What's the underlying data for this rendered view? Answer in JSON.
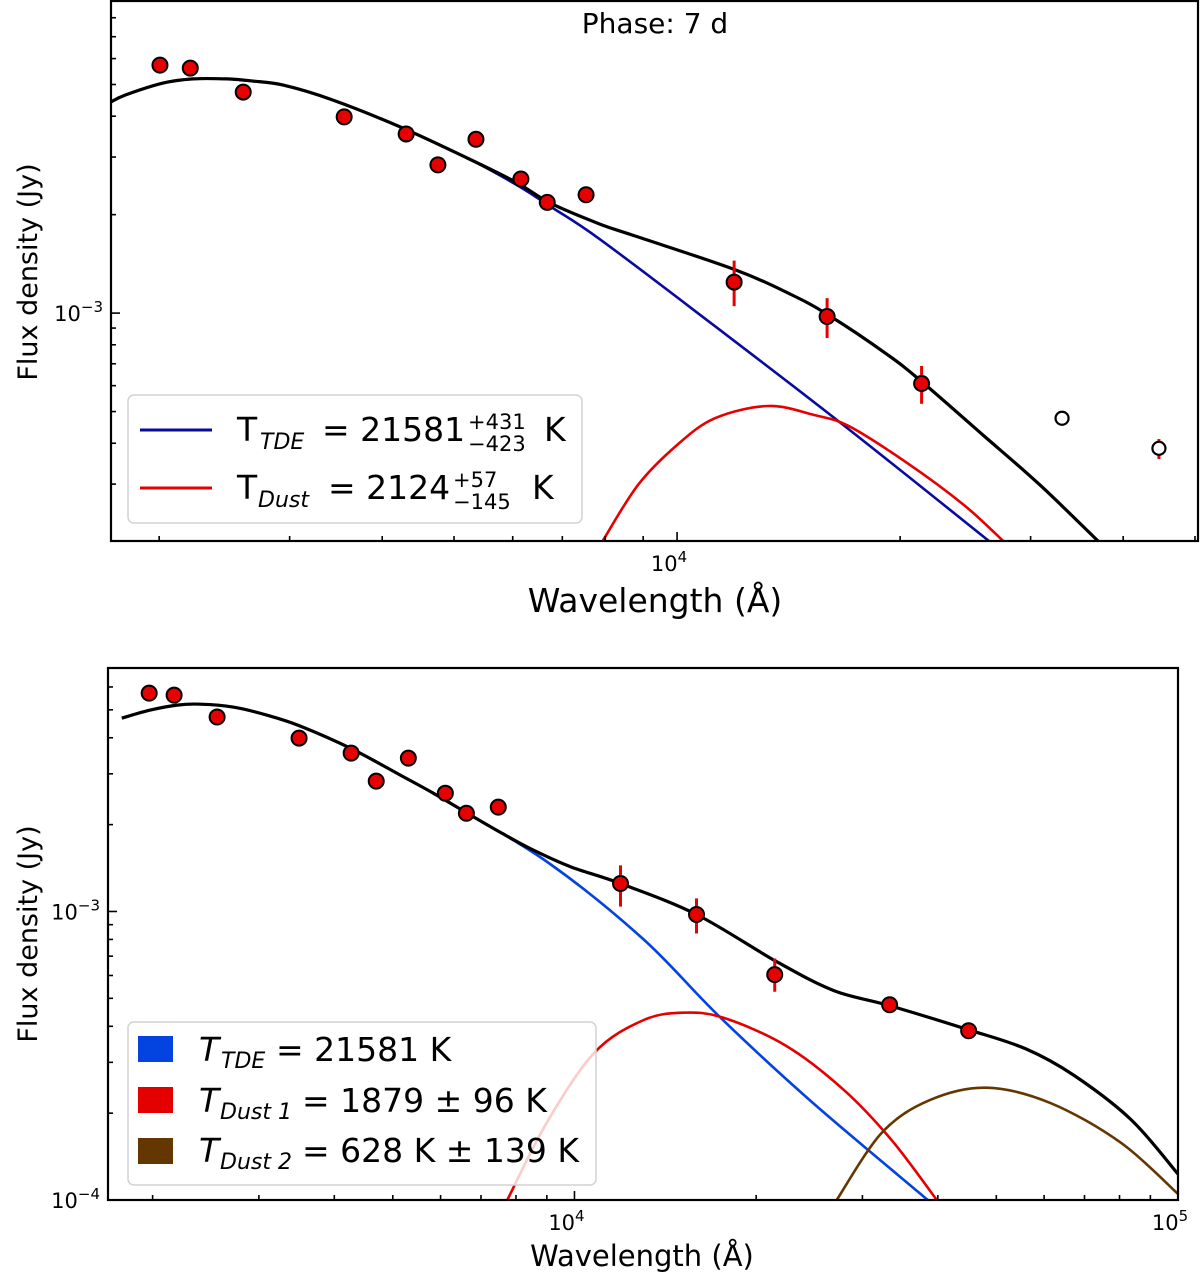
{
  "chart_data": [
    {
      "type": "scatter+line",
      "title": "Phase: 7 d",
      "xlabel": "Wavelength (Å)",
      "ylabel": "Flux density (Jy)",
      "xscale": "log",
      "yscale": "log",
      "xlim": [
        1722,
        50470
      ],
      "ylim": [
        0.000201,
        0.009
      ],
      "grid": false,
      "xticklabels": [
        {
          "value": 10000,
          "base": "10",
          "exp": "4"
        }
      ],
      "yticklabels": [
        {
          "value": 0.001,
          "base": "10",
          "exp": "−3"
        }
      ],
      "legend": {
        "position": "lower-left",
        "entries": [
          {
            "symbol": "T",
            "subscript": "TDE",
            "equals": "= 21581",
            "sup": "+431",
            "sub": "−423",
            "unit": "K",
            "color": "#0a0a9e"
          },
          {
            "symbol": "T",
            "subscript": "Dust",
            "equals": "= 2124",
            "sup": "+57",
            "sub": "−145",
            "unit": "K",
            "color": "#e60000"
          }
        ]
      },
      "points": [
        {
          "x": 2005,
          "y": 0.00573,
          "filled": true
        },
        {
          "x": 2203,
          "y": 0.00561,
          "filled": true
        },
        {
          "x": 2597,
          "y": 0.00474,
          "filled": true
        },
        {
          "x": 3554,
          "y": 0.00398,
          "filled": true
        },
        {
          "x": 4309,
          "y": 0.00353,
          "filled": true
        },
        {
          "x": 4756,
          "y": 0.00284,
          "filled": true
        },
        {
          "x": 5353,
          "y": 0.0034,
          "filled": true
        },
        {
          "x": 6155,
          "y": 0.00257,
          "filled": true
        },
        {
          "x": 6680,
          "y": 0.00218,
          "filled": true
        },
        {
          "x": 7537,
          "y": 0.0023,
          "filled": true
        },
        {
          "x": 11940,
          "y": 0.001244,
          "ylo": 0.00105,
          "yhi": 0.001447,
          "filled": true
        },
        {
          "x": 15940,
          "y": 0.000976,
          "ylo": 0.000839,
          "yhi": 0.001111,
          "filled": true
        },
        {
          "x": 21380,
          "y": 0.000609,
          "ylo": 0.000528,
          "yhi": 0.000689,
          "filled": true
        },
        {
          "x": 33080,
          "y": 0.000477,
          "filled": false
        },
        {
          "x": 44700,
          "y": 0.000386,
          "ylo": 0.000358,
          "yhi": 0.000412,
          "filled": false
        }
      ],
      "curves": [
        {
          "legend_entry": 0,
          "color": "#0a0a9e",
          "x": [
            1722,
            1799,
            2024,
            2222,
            2471,
            2679,
            2941,
            3433,
            4228,
            5208,
            6084,
            6741,
            7873,
            11250,
            16640,
            26430
          ],
          "y": [
            0.00442,
            0.00464,
            0.00505,
            0.0052,
            0.0052,
            0.00512,
            0.00498,
            0.00448,
            0.00371,
            0.00298,
            0.00246,
            0.00212,
            0.00168,
            0.000912,
            0.000461,
            0.0002
          ]
        },
        {
          "legend_entry": 1,
          "color": "#e60000",
          "x": [
            7925,
            8853,
            10000,
            11250,
            13270,
            15310,
            17060,
            20370,
            24380,
            27610
          ],
          "y": [
            0.0002,
            0.000298,
            0.000395,
            0.000477,
            0.00052,
            0.000488,
            0.000451,
            0.00035,
            0.000259,
            0.0002
          ]
        },
        {
          "legend_entry": null,
          "color": "#000000",
          "x": [
            1722,
            1799,
            2024,
            2222,
            2471,
            2679,
            2941,
            3433,
            4228,
            5208,
            6084,
            6741,
            7873,
            8853,
            11940,
            14250,
            16080,
            19190,
            21340,
            25870,
            30900,
            37070
          ],
          "y": [
            0.00442,
            0.00464,
            0.00505,
            0.0052,
            0.0052,
            0.00512,
            0.00498,
            0.00448,
            0.00371,
            0.00298,
            0.0025,
            0.00217,
            0.00187,
            0.00171,
            0.00136,
            0.00114,
            0.00098,
            0.000749,
            0.00062,
            0.000424,
            0.000298,
            0.0002
          ]
        }
      ]
    },
    {
      "type": "scatter+line",
      "title": "",
      "xlabel": "Wavelength (Å)",
      "ylabel": "Flux density (Jy)",
      "xscale": "log",
      "yscale": "log",
      "xlim": [
        1687,
        100000
      ],
      "ylim": [
        0.0001,
        0.00698
      ],
      "grid": false,
      "xticklabels": [
        {
          "value": 10000,
          "base": "10",
          "exp": "4"
        },
        {
          "value": 100000,
          "base": "10",
          "exp": "5"
        }
      ],
      "yticklabels": [
        {
          "value": 0.001,
          "base": "10",
          "exp": "−3"
        },
        {
          "value": 0.0001,
          "base": "10",
          "exp": "−4"
        }
      ],
      "legend": {
        "position": "lower-left",
        "entries": [
          {
            "symbol": "T",
            "subscript": "TDE",
            "text": "= 21581 K",
            "color": "#0343df"
          },
          {
            "symbol": "T",
            "subscript": "Dust 1",
            "text": "= 1879 ± 96 K",
            "color": "#e50000"
          },
          {
            "symbol": "T",
            "subscript": "Dust 2",
            "text": "= 628 K ± 139 K",
            "color": "#653700"
          }
        ]
      },
      "points": [
        {
          "x": 1974,
          "y": 0.00571,
          "filled": true
        },
        {
          "x": 2171,
          "y": 0.00562,
          "filled": true
        },
        {
          "x": 2558,
          "y": 0.00472,
          "filled": true
        },
        {
          "x": 3497,
          "y": 0.00399,
          "filled": true
        },
        {
          "x": 4266,
          "y": 0.00354,
          "filled": true
        },
        {
          "x": 4694,
          "y": 0.00283,
          "filled": true
        },
        {
          "x": 5306,
          "y": 0.0034,
          "filled": true
        },
        {
          "x": 6110,
          "y": 0.00257,
          "filled": true
        },
        {
          "x": 6621,
          "y": 0.00219,
          "filled": true
        },
        {
          "x": 7478,
          "y": 0.0023,
          "filled": true
        },
        {
          "x": 11920,
          "y": 0.00125,
          "ylo": 0.00104,
          "yhi": 0.001445,
          "filled": true
        },
        {
          "x": 15930,
          "y": 0.000976,
          "ylo": 0.000839,
          "yhi": 0.00111,
          "filled": true
        },
        {
          "x": 21470,
          "y": 0.000604,
          "ylo": 0.000527,
          "yhi": 0.000687,
          "filled": true
        },
        {
          "x": 33280,
          "y": 0.000475,
          "filled": true
        },
        {
          "x": 44990,
          "y": 0.000386,
          "filled": true
        }
      ],
      "curves": [
        {
          "legend_entry": 0,
          "color": "#0343df",
          "x": [
            1778,
            1982,
            2197,
            2399,
            2719,
            3096,
            3513,
            4254,
            5145,
            5836,
            6224,
            8990,
            12970,
            17330,
            24530,
            38500
          ],
          "y": [
            0.00468,
            0.00499,
            0.00519,
            0.00523,
            0.00511,
            0.00479,
            0.00439,
            0.00368,
            0.00297,
            0.00257,
            0.00237,
            0.00149,
            0.000806,
            0.000435,
            0.000222,
            0.0001
          ]
        },
        {
          "legend_entry": 1,
          "color": "#e50000",
          "x": [
            7740,
            8990,
            10790,
            12970,
            15100,
            17660,
            22390,
            27930,
            33560,
            39850
          ],
          "y": [
            0.0001,
            0.000185,
            0.000324,
            0.000419,
            0.000446,
            0.000428,
            0.000343,
            0.000241,
            0.000161,
            0.0001
          ]
        },
        {
          "legend_entry": 2,
          "color": "#653700",
          "x": [
            27200,
            32300,
            38800,
            48200,
            61400,
            80400,
            100000
          ],
          "y": [
            0.0001,
            0.000171,
            0.000222,
            0.000245,
            0.000217,
            0.000158,
            0.000105
          ]
        },
        {
          "legend_entry": null,
          "color": "#000000",
          "x": [
            1778,
            1982,
            2197,
            2399,
            2719,
            3096,
            3513,
            4254,
            5145,
            5836,
            6647,
            7541,
            8455,
            9850,
            11920,
            15930,
            21630,
            26900,
            33270,
            44990,
            55970,
            67300,
            83600,
            100000
          ],
          "y": [
            0.00468,
            0.00499,
            0.00519,
            0.00523,
            0.00511,
            0.00479,
            0.00439,
            0.00368,
            0.00297,
            0.00257,
            0.00219,
            0.00188,
            0.00165,
            0.00143,
            0.00125,
            0.000976,
            0.00067,
            0.000532,
            0.000472,
            0.000389,
            0.000334,
            0.00027,
            0.00019,
            0.000123
          ]
        }
      ]
    }
  ]
}
